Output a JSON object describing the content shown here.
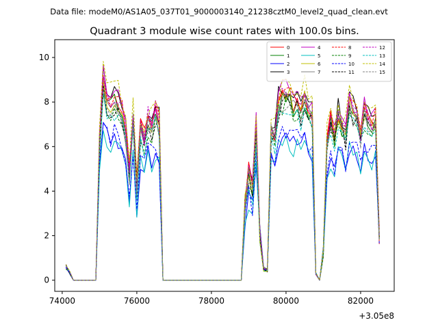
{
  "chart_data": {
    "type": "line",
    "suptitle": "Data file: modeM0/AS1A05_037T01_9000003140_21238cztM0_level2_quad_clean.evt",
    "title": "Quadrant 3 module wise count rates with 100.0s bins.",
    "xlabel": "",
    "ylabel": "",
    "x_offset_label": "+3.05e8",
    "xlim": [
      73800,
      82900
    ],
    "ylim": [
      -0.5,
      10.8
    ],
    "xticks": [
      74000,
      76000,
      78000,
      80000,
      82000
    ],
    "xtick_labels": [
      "74000",
      "76000",
      "78000",
      "80000",
      "82000"
    ],
    "yticks": [
      0,
      2,
      4,
      6,
      8,
      10
    ],
    "ytick_labels": [
      "0",
      "2",
      "4",
      "6",
      "8",
      "10"
    ],
    "grid": false,
    "legend_position": "top-right",
    "legend_columns": 4,
    "segments": [
      {
        "x": [
          74100,
          74200,
          74300,
          74400,
          74500,
          74600,
          74700,
          74800,
          74900,
          75000,
          75100,
          75200,
          75300,
          75400,
          75500,
          75600,
          75700,
          75800,
          75900,
          76000,
          76100,
          76200,
          76300,
          76400,
          76500,
          76600,
          76700
        ],
        "lo": 1,
        "hi": 23
      },
      {
        "x": [
          76700,
          76900,
          77100,
          77300,
          77500,
          77700,
          77900,
          78100,
          78300,
          78500,
          78700,
          78800
        ],
        "flat": true
      },
      {
        "x": [
          78800,
          78900,
          79000,
          79100,
          79200,
          79300,
          79400,
          79500,
          79600,
          79700
        ],
        "lo": 1,
        "hi": 8
      },
      {
        "x": [
          79700,
          79800,
          79900,
          80000,
          80100,
          80200,
          80300,
          80400,
          80500,
          80600,
          80700,
          80800,
          80900
        ],
        "lo": 1,
        "hi": 11
      },
      {
        "x": [
          80900,
          81000,
          81100,
          81200,
          81300,
          81400,
          81500,
          81600,
          81700,
          81800,
          81900,
          82000,
          82100,
          82200,
          82300,
          82400,
          82500
        ],
        "lo": 2,
        "hi": 15
      }
    ],
    "series": [
      {
        "name": "0",
        "color": "#ff0000",
        "dash": "solid",
        "scale": 0.97,
        "peak": 9.9
      },
      {
        "name": "1",
        "color": "#008000",
        "dash": "solid",
        "scale": 0.93,
        "peak": 8.1
      },
      {
        "name": "2",
        "color": "#0000ff",
        "dash": "solid",
        "scale": 0.74,
        "peak": 6.6
      },
      {
        "name": "3",
        "color": "#000000",
        "dash": "solid",
        "scale": 1.0,
        "peak": 9.8
      },
      {
        "name": "4",
        "color": "#c000c0",
        "dash": "solid",
        "scale": 0.99,
        "peak": 10.3
      },
      {
        "name": "5",
        "color": "#00bfbf",
        "dash": "solid",
        "scale": 0.72,
        "peak": 6.0
      },
      {
        "name": "6",
        "color": "#bfbf00",
        "dash": "solid",
        "scale": 0.95,
        "peak": 9.1
      },
      {
        "name": "7",
        "color": "#808080",
        "dash": "solid",
        "scale": 0.94,
        "peak": 8.3
      },
      {
        "name": "8",
        "color": "#ff0000",
        "dash": "dashed",
        "scale": 0.98,
        "peak": 9.7
      },
      {
        "name": "9",
        "color": "#008000",
        "dash": "dashed",
        "scale": 0.9,
        "peak": 8.4
      },
      {
        "name": "10",
        "color": "#0000ff",
        "dash": "dashed",
        "scale": 0.77,
        "peak": 6.9
      },
      {
        "name": "11",
        "color": "#000000",
        "dash": "dashed",
        "scale": 0.91,
        "peak": 8.7
      },
      {
        "name": "12",
        "color": "#c000c0",
        "dash": "dashed",
        "scale": 0.97,
        "peak": 9.8
      },
      {
        "name": "13",
        "color": "#00bfbf",
        "dash": "dashed",
        "scale": 0.88,
        "peak": 8.2
      },
      {
        "name": "14",
        "color": "#bfbf00",
        "dash": "dashed",
        "scale": 1.02,
        "peak": 10.1
      },
      {
        "name": "15",
        "color": "#808080",
        "dash": "dashed",
        "scale": 0.92,
        "peak": 8.5
      }
    ],
    "base_profile": {
      "x": [
        74100,
        74200,
        74300,
        74400,
        74500,
        74600,
        74700,
        74800,
        74900,
        75000,
        75100,
        75200,
        75300,
        75400,
        75500,
        75600,
        75700,
        75800,
        75900,
        76000,
        76100,
        76200,
        76300,
        76400,
        76500,
        76600,
        76700,
        76800,
        78800,
        78900,
        79000,
        79100,
        79200,
        79300,
        79400,
        79500,
        79600,
        79700,
        79800,
        79900,
        80000,
        80100,
        80200,
        80300,
        80400,
        80500,
        80600,
        80700,
        80800,
        80900,
        81000,
        81100,
        81200,
        81300,
        81400,
        81500,
        81600,
        81700,
        81800,
        81900,
        82000,
        82100,
        82200,
        82300,
        82400,
        82500
      ],
      "y": [
        0.6,
        0.35,
        0.0,
        0.0,
        0.0,
        0.0,
        0.0,
        0.0,
        0.0,
        6.5,
        9.3,
        8.6,
        8.3,
        8.6,
        8.4,
        7.9,
        6.8,
        5.0,
        7.6,
        4.4,
        7.2,
        6.7,
        7.6,
        7.3,
        8.0,
        7.4,
        0.0,
        0.0,
        0.0,
        3.6,
        5.0,
        4.3,
        7.2,
        2.0,
        0.5,
        0.45,
        7.2,
        6.8,
        8.3,
        8.6,
        8.7,
        8.6,
        8.2,
        8.4,
        8.0,
        8.6,
        7.9,
        7.8,
        0.3,
        0.0,
        1.3,
        6.6,
        7.5,
        6.7,
        7.9,
        7.3,
        6.9,
        8.2,
        8.0,
        7.9,
        6.7,
        7.9,
        7.6,
        7.3,
        7.5,
        2.0
      ]
    }
  }
}
